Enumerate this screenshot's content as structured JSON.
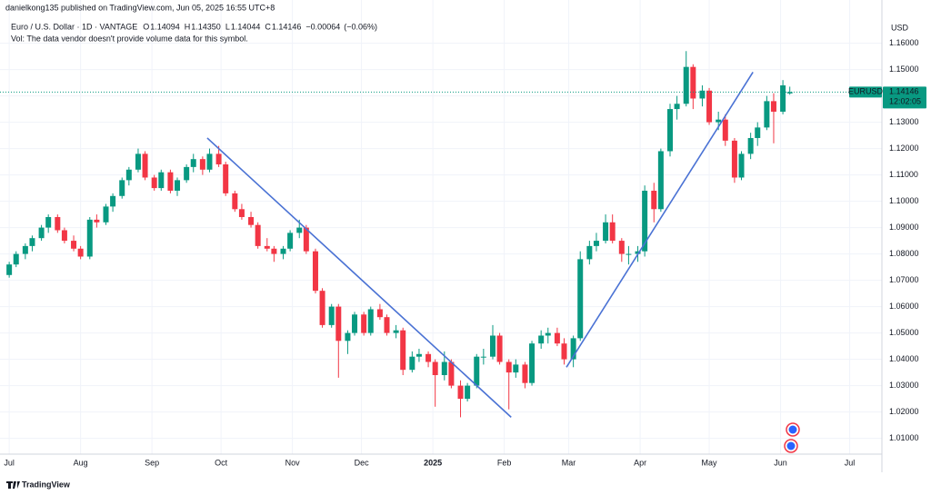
{
  "header": {
    "published": "danielkong135 published on TradingView.com, Jun 05, 2025 16:55 UTC+8",
    "vol_note": "Vol: The data vendor doesn't provide volume data for this symbol."
  },
  "footer": {
    "brand": "TradingView"
  },
  "chart_data": {
    "type": "candlestick",
    "title": "Euro / U.S. Dollar · 1D · VANTAGE",
    "ohlc_labels": [
      "O",
      "H",
      "L",
      "C"
    ],
    "ohlc": [
      {
        "value": 1.14094,
        "label": "1.14094"
      },
      {
        "value": 1.1435,
        "label": "1.14350"
      },
      {
        "value": 1.14044,
        "label": "1.14044"
      },
      {
        "value": 1.14146,
        "label": "1.14146"
      }
    ],
    "change": {
      "value": -0.00064,
      "label": "−0.00064"
    },
    "change_pct": {
      "value": -0.06,
      "label": "(−0.06%)"
    },
    "currency": "USD",
    "symbol": "EURUSD",
    "last_price": {
      "value": 1.14146,
      "label": "1.14146"
    },
    "countdown": "12:02:05",
    "up_color": "#089981",
    "down_color": "#f23645",
    "trend_color": "#4a72d4",
    "grid": true,
    "xlim": [
      "2024-06-27",
      "2025-07-15"
    ],
    "xticks": [
      {
        "value": "2024-07-01",
        "label": "Jul"
      },
      {
        "value": "2024-08-01",
        "label": "Aug"
      },
      {
        "value": "2024-09-01",
        "label": "Sep"
      },
      {
        "value": "2024-10-01",
        "label": "Oct"
      },
      {
        "value": "2024-11-01",
        "label": "Nov"
      },
      {
        "value": "2024-12-01",
        "label": "Dec"
      },
      {
        "value": "2025-01-01",
        "label": "2025"
      },
      {
        "value": "2025-02-01",
        "label": "Feb"
      },
      {
        "value": "2025-03-01",
        "label": "Mar"
      },
      {
        "value": "2025-04-01",
        "label": "Apr"
      },
      {
        "value": "2025-05-01",
        "label": "May"
      },
      {
        "value": "2025-06-01",
        "label": "Jun"
      },
      {
        "value": "2025-07-01",
        "label": "Jul"
      }
    ],
    "ylim": [
      1.004,
      1.1764
    ],
    "yticks": [
      {
        "value": 1.01,
        "label": "1.01000"
      },
      {
        "value": 1.02,
        "label": "1.02000"
      },
      {
        "value": 1.03,
        "label": "1.03000"
      },
      {
        "value": 1.04,
        "label": "1.04000"
      },
      {
        "value": 1.05,
        "label": "1.05000"
      },
      {
        "value": 1.06,
        "label": "1.06000"
      },
      {
        "value": 1.07,
        "label": "1.07000"
      },
      {
        "value": 1.08,
        "label": "1.08000"
      },
      {
        "value": 1.09,
        "label": "1.09000"
      },
      {
        "value": 1.1,
        "label": "1.10000"
      },
      {
        "value": 1.11,
        "label": "1.11000"
      },
      {
        "value": 1.12,
        "label": "1.12000"
      },
      {
        "value": 1.13,
        "label": "1.13000"
      },
      {
        "value": 1.14,
        "label": "1.14000"
      },
      {
        "value": 1.15,
        "label": "1.15000"
      },
      {
        "value": 1.16,
        "label": "1.16000"
      }
    ],
    "x": [
      "2024-07-01",
      "2024-07-04",
      "2024-07-08",
      "2024-07-11",
      "2024-07-15",
      "2024-07-18",
      "2024-07-22",
      "2024-07-25",
      "2024-07-29",
      "2024-08-01",
      "2024-08-05",
      "2024-08-08",
      "2024-08-12",
      "2024-08-15",
      "2024-08-19",
      "2024-08-22",
      "2024-08-26",
      "2024-08-29",
      "2024-09-02",
      "2024-09-05",
      "2024-09-09",
      "2024-09-12",
      "2024-09-16",
      "2024-09-19",
      "2024-09-23",
      "2024-09-26",
      "2024-09-30",
      "2024-10-03",
      "2024-10-07",
      "2024-10-10",
      "2024-10-14",
      "2024-10-17",
      "2024-10-21",
      "2024-10-24",
      "2024-10-28",
      "2024-10-31",
      "2024-11-04",
      "2024-11-07",
      "2024-11-11",
      "2024-11-14",
      "2024-11-18",
      "2024-11-21",
      "2024-11-25",
      "2024-11-28",
      "2024-12-02",
      "2024-12-05",
      "2024-12-09",
      "2024-12-12",
      "2024-12-16",
      "2024-12-19",
      "2024-12-23",
      "2024-12-26",
      "2024-12-30",
      "2025-01-02",
      "2025-01-06",
      "2025-01-09",
      "2025-01-13",
      "2025-01-16",
      "2025-01-20",
      "2025-01-23",
      "2025-01-27",
      "2025-01-30",
      "2025-02-03",
      "2025-02-06",
      "2025-02-10",
      "2025-02-13",
      "2025-02-17",
      "2025-02-20",
      "2025-02-24",
      "2025-02-27",
      "2025-03-03",
      "2025-03-06",
      "2025-03-10",
      "2025-03-13",
      "2025-03-17",
      "2025-03-20",
      "2025-03-24",
      "2025-03-27",
      "2025-03-31",
      "2025-04-03",
      "2025-04-07",
      "2025-04-10",
      "2025-04-14",
      "2025-04-17",
      "2025-04-21",
      "2025-04-24",
      "2025-04-28",
      "2025-05-01",
      "2025-05-05",
      "2025-05-08",
      "2025-05-12",
      "2025-05-15",
      "2025-05-19",
      "2025-05-22",
      "2025-05-26",
      "2025-05-29",
      "2025-06-02",
      "2025-06-05"
    ],
    "candles": [
      [
        1.072,
        1.077,
        1.071,
        1.076
      ],
      [
        1.076,
        1.081,
        1.075,
        1.08
      ],
      [
        1.08,
        1.084,
        1.078,
        1.083
      ],
      [
        1.083,
        1.087,
        1.081,
        1.086
      ],
      [
        1.086,
        1.091,
        1.085,
        1.09
      ],
      [
        1.09,
        1.095,
        1.088,
        1.094
      ],
      [
        1.094,
        1.095,
        1.088,
        1.089
      ],
      [
        1.089,
        1.09,
        1.084,
        1.085
      ],
      [
        1.085,
        1.087,
        1.081,
        1.082
      ],
      [
        1.082,
        1.083,
        1.078,
        1.079
      ],
      [
        1.079,
        1.094,
        1.078,
        1.093
      ],
      [
        1.093,
        1.095,
        1.09,
        1.092
      ],
      [
        1.092,
        1.099,
        1.091,
        1.098
      ],
      [
        1.098,
        1.103,
        1.096,
        1.102
      ],
      [
        1.102,
        1.109,
        1.101,
        1.108
      ],
      [
        1.108,
        1.113,
        1.106,
        1.112
      ],
      [
        1.112,
        1.12,
        1.111,
        1.118
      ],
      [
        1.118,
        1.119,
        1.108,
        1.109
      ],
      [
        1.109,
        1.11,
        1.104,
        1.105
      ],
      [
        1.105,
        1.112,
        1.104,
        1.111
      ],
      [
        1.111,
        1.112,
        1.103,
        1.104
      ],
      [
        1.104,
        1.109,
        1.102,
        1.108
      ],
      [
        1.108,
        1.114,
        1.107,
        1.113
      ],
      [
        1.113,
        1.118,
        1.111,
        1.116
      ],
      [
        1.116,
        1.117,
        1.11,
        1.112
      ],
      [
        1.112,
        1.12,
        1.111,
        1.118
      ],
      [
        1.118,
        1.121,
        1.113,
        1.114
      ],
      [
        1.114,
        1.115,
        1.102,
        1.103
      ],
      [
        1.103,
        1.104,
        1.096,
        1.097
      ],
      [
        1.097,
        1.099,
        1.093,
        1.094
      ],
      [
        1.094,
        1.096,
        1.09,
        1.091
      ],
      [
        1.091,
        1.092,
        1.082,
        1.083
      ],
      [
        1.083,
        1.086,
        1.081,
        1.082
      ],
      [
        1.082,
        1.083,
        1.077,
        1.08
      ],
      [
        1.08,
        1.083,
        1.078,
        1.082
      ],
      [
        1.082,
        1.089,
        1.081,
        1.088
      ],
      [
        1.088,
        1.093,
        1.086,
        1.09
      ],
      [
        1.09,
        1.091,
        1.08,
        1.081
      ],
      [
        1.081,
        1.082,
        1.065,
        1.066
      ],
      [
        1.066,
        1.067,
        1.052,
        1.053
      ],
      [
        1.053,
        1.061,
        1.052,
        1.06
      ],
      [
        1.06,
        1.061,
        1.033,
        1.047
      ],
      [
        1.047,
        1.051,
        1.042,
        1.05
      ],
      [
        1.05,
        1.058,
        1.049,
        1.057
      ],
      [
        1.057,
        1.058,
        1.049,
        1.05
      ],
      [
        1.05,
        1.06,
        1.049,
        1.059
      ],
      [
        1.059,
        1.061,
        1.055,
        1.056
      ],
      [
        1.056,
        1.057,
        1.049,
        1.05
      ],
      [
        1.05,
        1.053,
        1.048,
        1.051
      ],
      [
        1.051,
        1.052,
        1.034,
        1.036
      ],
      [
        1.036,
        1.043,
        1.035,
        1.041
      ],
      [
        1.041,
        1.044,
        1.039,
        1.042
      ],
      [
        1.042,
        1.043,
        1.037,
        1.039
      ],
      [
        1.039,
        1.04,
        1.022,
        1.034
      ],
      [
        1.034,
        1.043,
        1.032,
        1.039
      ],
      [
        1.039,
        1.04,
        1.029,
        1.03
      ],
      [
        1.03,
        1.032,
        1.018,
        1.025
      ],
      [
        1.025,
        1.031,
        1.024,
        1.03
      ],
      [
        1.03,
        1.042,
        1.029,
        1.041
      ],
      [
        1.041,
        1.044,
        1.038,
        1.041
      ],
      [
        1.041,
        1.053,
        1.04,
        1.049
      ],
      [
        1.049,
        1.05,
        1.038,
        1.039
      ],
      [
        1.039,
        1.04,
        1.021,
        1.035
      ],
      [
        1.035,
        1.04,
        1.033,
        1.038
      ],
      [
        1.038,
        1.039,
        1.029,
        1.031
      ],
      [
        1.031,
        1.047,
        1.03,
        1.046
      ],
      [
        1.046,
        1.051,
        1.044,
        1.049
      ],
      [
        1.049,
        1.052,
        1.046,
        1.05
      ],
      [
        1.05,
        1.052,
        1.045,
        1.046
      ],
      [
        1.046,
        1.048,
        1.038,
        1.04
      ],
      [
        1.04,
        1.049,
        1.037,
        1.048
      ],
      [
        1.048,
        1.081,
        1.047,
        1.078
      ],
      [
        1.078,
        1.085,
        1.076,
        1.083
      ],
      [
        1.083,
        1.088,
        1.081,
        1.085
      ],
      [
        1.085,
        1.095,
        1.084,
        1.092
      ],
      [
        1.092,
        1.095,
        1.084,
        1.085
      ],
      [
        1.085,
        1.086,
        1.077,
        1.08
      ],
      [
        1.08,
        1.083,
        1.076,
        1.08
      ],
      [
        1.08,
        1.083,
        1.077,
        1.081
      ],
      [
        1.081,
        1.106,
        1.079,
        1.104
      ],
      [
        1.104,
        1.107,
        1.092,
        1.097
      ],
      [
        1.097,
        1.12,
        1.096,
        1.119
      ],
      [
        1.119,
        1.137,
        1.117,
        1.135
      ],
      [
        1.135,
        1.14,
        1.131,
        1.137
      ],
      [
        1.137,
        1.157,
        1.136,
        1.151
      ],
      [
        1.151,
        1.152,
        1.135,
        1.139
      ],
      [
        1.139,
        1.144,
        1.136,
        1.142
      ],
      [
        1.142,
        1.143,
        1.129,
        1.13
      ],
      [
        1.13,
        1.134,
        1.127,
        1.131
      ],
      [
        1.131,
        1.133,
        1.121,
        1.123
      ],
      [
        1.123,
        1.124,
        1.107,
        1.109
      ],
      [
        1.109,
        1.119,
        1.108,
        1.118
      ],
      [
        1.118,
        1.126,
        1.116,
        1.124
      ],
      [
        1.124,
        1.13,
        1.121,
        1.128
      ],
      [
        1.128,
        1.14,
        1.127,
        1.138
      ],
      [
        1.138,
        1.141,
        1.122,
        1.134
      ],
      [
        1.134,
        1.146,
        1.133,
        1.144
      ],
      [
        1.14094,
        1.1435,
        1.14044,
        1.14146
      ]
    ],
    "trendlines": [
      {
        "x": [
          "2024-09-25",
          "2025-02-04"
        ],
        "y": [
          1.124,
          1.018
        ]
      },
      {
        "x": [
          "2025-02-28",
          "2025-05-20"
        ],
        "y": [
          1.037,
          1.149
        ]
      }
    ]
  }
}
